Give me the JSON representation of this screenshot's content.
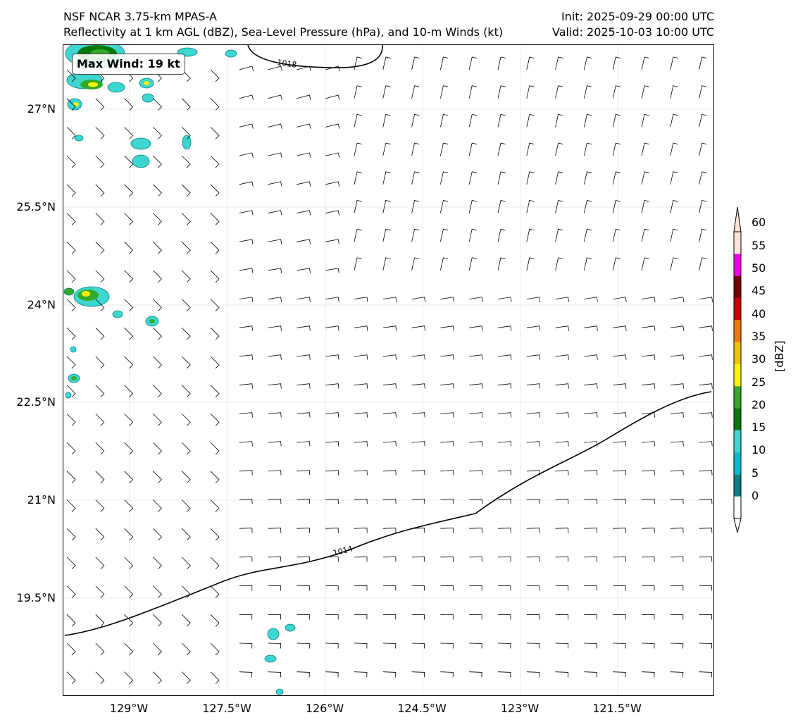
{
  "header": {
    "model_name": "NSF NCAR 3.75-km MPAS-A",
    "fields_description": "Reflectivity at 1 km AGL (dBZ), Sea-Level Pressure (hPa), and 10-m Winds (kt)",
    "init_time": "Init: 2025-09-29 00:00 UTC",
    "valid_time": "Valid: 2025-10-03 10:00 UTC"
  },
  "map": {
    "max_wind_label": "Max Wind: 19 kt",
    "latitude_labels": [
      "27°N",
      "25.5°N",
      "24°N",
      "22.5°N",
      "21°N",
      "19.5°N"
    ],
    "longitude_labels": [
      "129°W",
      "127.5°W",
      "126°W",
      "124.5°W",
      "123°W",
      "121.5°W"
    ],
    "isobars": [
      {
        "value": "1018"
      },
      {
        "value": "1014"
      }
    ]
  },
  "colorbar": {
    "unit_label": "[dBZ]",
    "ticks": [
      "0",
      "5",
      "10",
      "15",
      "20",
      "25",
      "30",
      "35",
      "40",
      "45",
      "50",
      "55",
      "60"
    ],
    "colors": [
      "#ffffff",
      "#0a7f86",
      "#00bcd0",
      "#3dd6d0",
      "#087808",
      "#33aa2a",
      "#fff200",
      "#f2c200",
      "#f07b00",
      "#c80000",
      "#7a0000",
      "#ee00ee",
      "#fde3d8"
    ]
  }
}
